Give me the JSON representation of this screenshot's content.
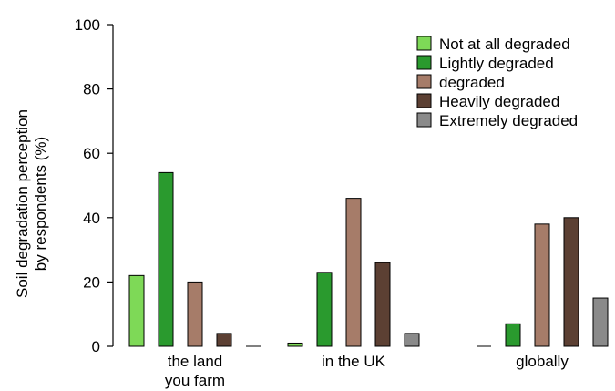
{
  "chart_data": {
    "type": "bar",
    "ylabel_lines": [
      "Soil degradation perception",
      "by respondents (%)"
    ],
    "categories": [
      {
        "lines": [
          "the land",
          "you farm"
        ]
      },
      {
        "lines": [
          "in the UK"
        ]
      },
      {
        "lines": [
          "globally"
        ]
      }
    ],
    "ylim": [
      0,
      100
    ],
    "yticks": [
      0,
      20,
      40,
      60,
      80,
      100
    ],
    "grid": false,
    "legend_position": "top-right",
    "series": [
      {
        "name": "Not at all degraded",
        "color": "#7ed957",
        "values": [
          22,
          1,
          0
        ]
      },
      {
        "name": "Lightly degraded",
        "color": "#2a9a2e",
        "values": [
          54,
          23,
          7
        ]
      },
      {
        "name": "degraded",
        "color": "#a67c69",
        "values": [
          20,
          46,
          38
        ]
      },
      {
        "name": "Heavily degraded",
        "color": "#5c4033",
        "values": [
          4,
          26,
          40
        ]
      },
      {
        "name": "Extremely degraded",
        "color": "#8a8a8a",
        "values": [
          0,
          4,
          15
        ]
      }
    ]
  }
}
